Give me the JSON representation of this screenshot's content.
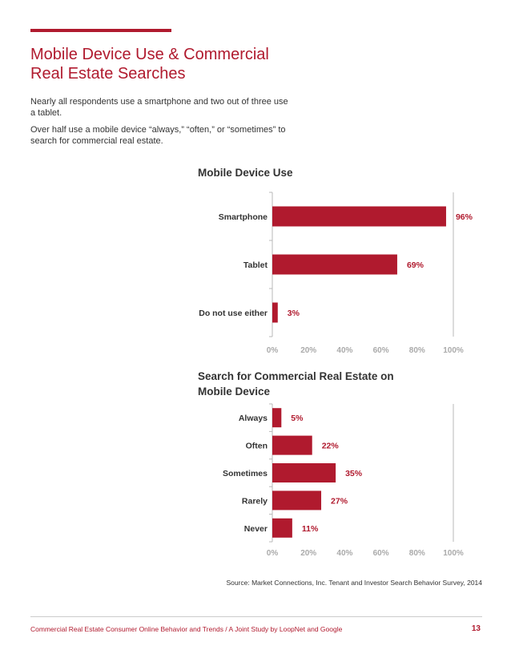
{
  "page": {
    "title": "Mobile Device Use & Commercial Real Estate Searches",
    "intro": [
      "Nearly all respondents use a smartphone and two out of three use a tablet.",
      "Over half use a mobile device “always,” “often,” or “sometimes” to search for commercial real estate."
    ],
    "source": "Source: Market Connections, Inc. Tenant and Investor Search Behavior Survey, 2014",
    "footer": "Commercial Real Estate Consumer Online Behavior and Trends  /  A Joint Study by LoopNet and Google",
    "page_number": "13"
  },
  "colors": {
    "accent": "#b01a2e",
    "bar": "#b01a2e",
    "tick": "#aaaaaa"
  },
  "chart_data": [
    {
      "type": "bar",
      "orientation": "horizontal",
      "title": "Mobile Device Use",
      "categories": [
        "Smartphone",
        "Tablet",
        "Do not use either"
      ],
      "values": [
        96,
        69,
        3
      ],
      "value_labels": [
        "96%",
        "69%",
        "3%"
      ],
      "xlim": [
        0,
        100
      ],
      "ticks": [
        "0%",
        "20%",
        "40%",
        "60%",
        "80%",
        "100%"
      ],
      "xlabel": "",
      "ylabel": ""
    },
    {
      "type": "bar",
      "orientation": "horizontal",
      "title": "Search for Commercial Real Estate on Mobile Device",
      "categories": [
        "Always",
        "Often",
        "Sometimes",
        "Rarely",
        "Never"
      ],
      "values": [
        5,
        22,
        35,
        27,
        11
      ],
      "value_labels": [
        "5%",
        "22%",
        "35%",
        "27%",
        "11%"
      ],
      "xlim": [
        0,
        100
      ],
      "ticks": [
        "0%",
        "20%",
        "40%",
        "60%",
        "80%",
        "100%"
      ],
      "xlabel": "",
      "ylabel": ""
    }
  ]
}
